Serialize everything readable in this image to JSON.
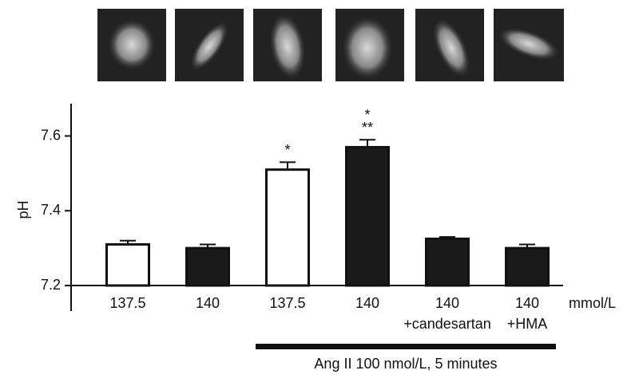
{
  "chart_data": {
    "type": "bar",
    "y_label": "pH",
    "categories": [
      "137.5",
      "140",
      "137.5",
      "140",
      "140",
      "140"
    ],
    "sublabels": [
      null,
      null,
      null,
      null,
      "+candesartan",
      "+HMA"
    ],
    "unit_label": "mmol/L",
    "values": [
      7.31,
      7.3,
      7.51,
      7.57,
      7.325,
      7.3
    ],
    "errors": [
      0.01,
      0.01,
      0.02,
      0.02,
      0.005,
      0.01
    ],
    "colors": [
      "#ffffff",
      "#1a1a1a",
      "#ffffff",
      "#1a1a1a",
      "#1a1a1a",
      "#1a1a1a"
    ],
    "ylim": [
      7.2,
      7.68
    ],
    "yticks": [
      7.2,
      7.4,
      7.6
    ],
    "annotations": [
      "*",
      "*",
      "**"
    ],
    "treatment_label": "Ang II 100 nmol/L, 5 minutes"
  }
}
